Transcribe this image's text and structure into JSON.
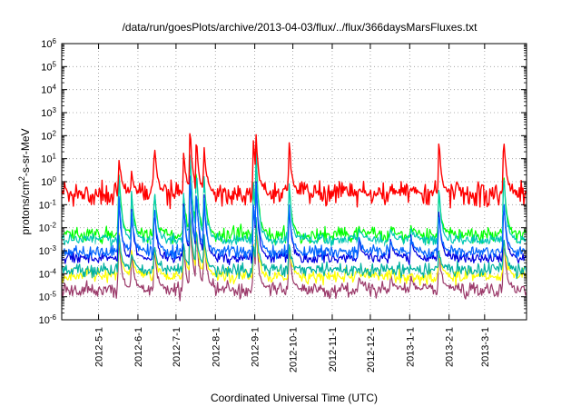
{
  "chart_data": {
    "type": "line",
    "title": "/data/run/goesPlots/archive/2013-04-03/flux/../flux/366daysMarsFluxes.txt",
    "xlabel": "Coordinated Universal Time (UTC)",
    "ylabel_prefix": "protons/cm",
    "ylabel_sup": "2",
    "ylabel_suffix": "-s-sr-MeV",
    "y_scale": "log",
    "ylim": [
      1e-06,
      1000000.0
    ],
    "y_ticks": [
      {
        "base": "10",
        "exp": "6",
        "value": 1000000.0
      },
      {
        "base": "10",
        "exp": "5",
        "value": 100000.0
      },
      {
        "base": "10",
        "exp": "4",
        "value": 10000.0
      },
      {
        "base": "10",
        "exp": "3",
        "value": 1000.0
      },
      {
        "base": "10",
        "exp": "2",
        "value": 100.0
      },
      {
        "base": "10",
        "exp": "1",
        "value": 10.0
      },
      {
        "base": "10",
        "exp": "0",
        "value": 1.0
      },
      {
        "base": "10",
        "exp": "-1",
        "value": 0.1
      },
      {
        "base": "10",
        "exp": "-2",
        "value": 0.01
      },
      {
        "base": "10",
        "exp": "-3",
        "value": 0.001
      },
      {
        "base": "10",
        "exp": "-4",
        "value": 0.0001
      },
      {
        "base": "10",
        "exp": "-5",
        "value": 1e-05
      },
      {
        "base": "10",
        "exp": "-6",
        "value": 1e-06
      }
    ],
    "xlim": [
      "2012-04-02",
      "2013-04-03"
    ],
    "x_ticks": [
      "2012-5-1",
      "2012-6-1",
      "2012-7-1",
      "2012-8-1",
      "2012-9-1",
      "2012-10-1",
      "2012-11-1",
      "2012-12-1",
      "2013-1-1",
      "2013-2-1",
      "2013-3-1"
    ],
    "x_tick_dates": [
      "2012-05-01",
      "2012-06-01",
      "2012-07-01",
      "2012-08-01",
      "2012-09-01",
      "2012-10-01",
      "2012-11-01",
      "2012-12-01",
      "2013-01-01",
      "2013-02-01",
      "2013-03-01"
    ],
    "grid": true,
    "events": [
      {
        "date": "2012-05-17",
        "red": 12,
        "green": 3,
        "blue": 0.3
      },
      {
        "date": "2012-05-27",
        "red": 3,
        "green": 0.3,
        "blue": 0.05
      },
      {
        "date": "2012-06-14",
        "red": 50,
        "green": 0.5,
        "blue": 0.08
      },
      {
        "date": "2012-07-07",
        "red": 20,
        "green": 0.3,
        "blue": 0.1
      },
      {
        "date": "2012-07-12",
        "red": 200,
        "green": 30,
        "blue": 3
      },
      {
        "date": "2012-07-17",
        "red": 100,
        "green": 5,
        "blue": 0.5
      },
      {
        "date": "2012-07-23",
        "red": 40,
        "green": 2,
        "blue": 0.3
      },
      {
        "date": "2012-08-31",
        "red": 60,
        "green": 1,
        "blue": 0.1
      },
      {
        "date": "2012-09-02",
        "red": 150,
        "green": 20,
        "blue": 1
      },
      {
        "date": "2012-09-28",
        "red": 60,
        "green": 1,
        "blue": 0.1
      },
      {
        "date": "2012-11-22",
        "red": 0.5,
        "green": 0.01,
        "blue": 0.004
      },
      {
        "date": "2012-12-17",
        "red": 0.5,
        "green": 0.01,
        "blue": 0.004
      },
      {
        "date": "2013-01-02",
        "red": 0.5,
        "green": 0.01,
        "blue": 0.004
      },
      {
        "date": "2013-01-24",
        "red": 80,
        "green": 0.5,
        "blue": 0.05
      },
      {
        "date": "2013-03-16",
        "red": 120,
        "green": 3,
        "blue": 0.2
      }
    ],
    "series": [
      {
        "color": "#ff0000",
        "baseline": 0.3
      },
      {
        "color": "#00ff00",
        "baseline": 0.005
      },
      {
        "color": "#00c8b4",
        "baseline": 0.003
      },
      {
        "color": "#ffffff",
        "baseline": 0.0015
      },
      {
        "color": "#0064ff",
        "baseline": 0.0009
      },
      {
        "color": "#0000e0",
        "baseline": 0.0005
      },
      {
        "color": "#00b0a0",
        "baseline": 0.00015
      },
      {
        "color": "#ffff00",
        "baseline": 8e-05
      },
      {
        "color": "#9b3a6a",
        "baseline": 2e-05
      }
    ]
  }
}
